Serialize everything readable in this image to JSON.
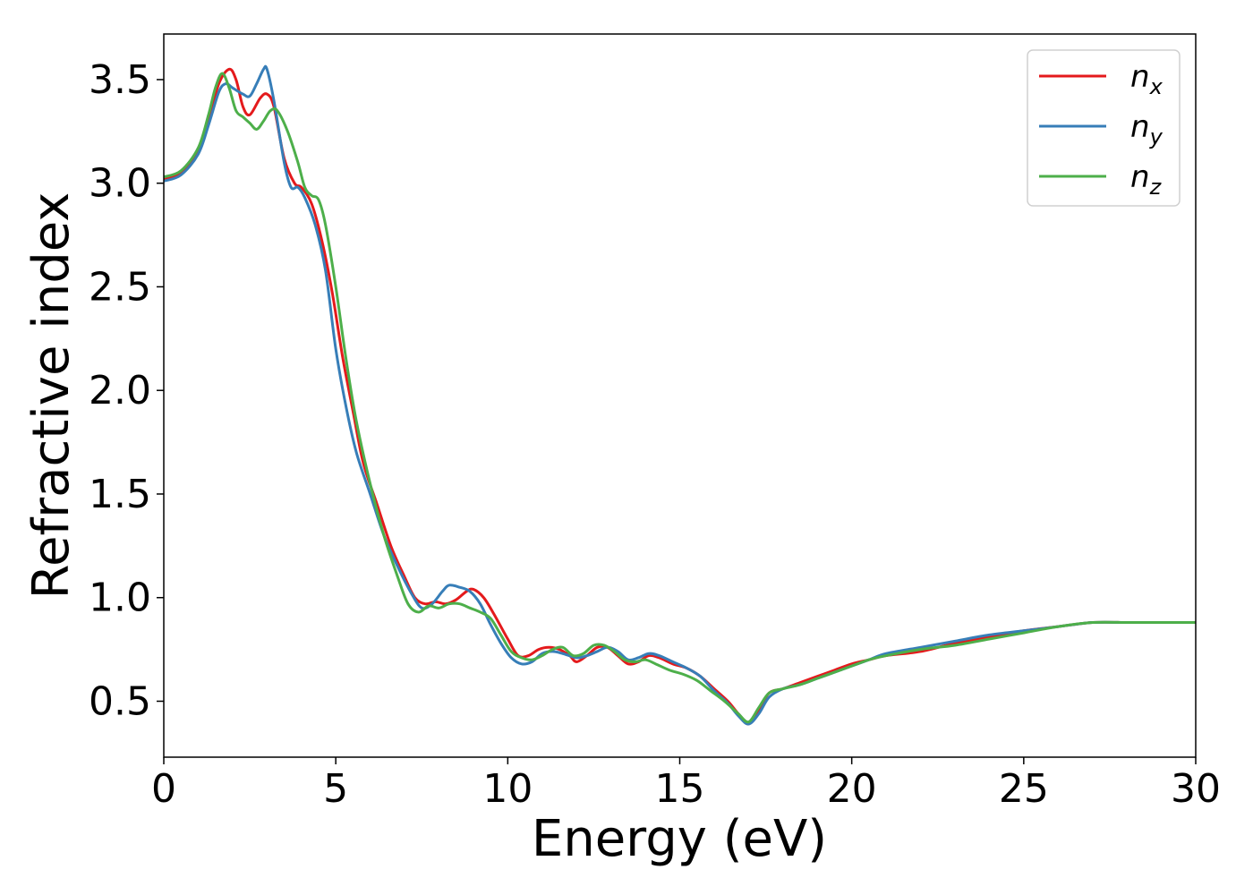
{
  "chart_data": {
    "type": "line",
    "xlabel": "Energy (eV)",
    "ylabel": "Refractive index",
    "xlim": [
      0,
      30
    ],
    "ylim": [
      0.23,
      3.72
    ],
    "xticks": [
      0,
      5,
      10,
      15,
      20,
      25,
      30
    ],
    "yticks": [
      0.5,
      1.0,
      1.5,
      2.0,
      2.5,
      3.0,
      3.5
    ],
    "grid": false,
    "legend_position": "top-right",
    "series": [
      {
        "name": "n",
        "subscript": "x",
        "color": "#e41a1c",
        "x": [
          0,
          0.5,
          1.0,
          1.3,
          1.6,
          1.9,
          2.1,
          2.3,
          2.5,
          2.8,
          3.0,
          3.2,
          3.5,
          3.8,
          4.0,
          4.3,
          4.6,
          4.9,
          5.2,
          5.5,
          5.8,
          6.2,
          6.6,
          7.0,
          7.3,
          7.6,
          7.9,
          8.2,
          8.5,
          8.8,
          9.0,
          9.3,
          9.6,
          10.0,
          10.3,
          10.6,
          10.9,
          11.2,
          11.5,
          11.8,
          12.0,
          12.3,
          12.6,
          12.9,
          13.2,
          13.5,
          13.8,
          14.1,
          14.4,
          14.8,
          15.2,
          15.6,
          16.0,
          16.4,
          16.7,
          17.0,
          17.3,
          17.6,
          18.0,
          18.5,
          19.0,
          19.5,
          20.0,
          20.5,
          21.0,
          22.0,
          23.0,
          24.0,
          25.0,
          26.0,
          27.0,
          28.0,
          28.5,
          29.0,
          30.0
        ],
        "y": [
          3.02,
          3.05,
          3.15,
          3.3,
          3.48,
          3.55,
          3.5,
          3.37,
          3.33,
          3.41,
          3.43,
          3.37,
          3.12,
          3.0,
          2.98,
          2.9,
          2.72,
          2.47,
          2.16,
          1.9,
          1.65,
          1.45,
          1.25,
          1.1,
          1.0,
          0.97,
          0.98,
          0.97,
          0.99,
          1.03,
          1.04,
          1.0,
          0.92,
          0.8,
          0.72,
          0.72,
          0.75,
          0.76,
          0.75,
          0.72,
          0.69,
          0.72,
          0.76,
          0.76,
          0.72,
          0.68,
          0.69,
          0.72,
          0.71,
          0.68,
          0.66,
          0.62,
          0.56,
          0.5,
          0.44,
          0.39,
          0.46,
          0.54,
          0.56,
          0.59,
          0.62,
          0.65,
          0.68,
          0.7,
          0.72,
          0.74,
          0.78,
          0.81,
          0.84,
          0.86,
          0.88,
          0.88,
          0.88,
          0.88,
          0.88
        ]
      },
      {
        "name": "n",
        "subscript": "y",
        "color": "#377eb8",
        "x": [
          0,
          0.5,
          1.0,
          1.3,
          1.6,
          1.8,
          2.0,
          2.3,
          2.5,
          2.7,
          2.9,
          3.0,
          3.2,
          3.5,
          3.7,
          3.9,
          4.1,
          4.4,
          4.7,
          5.0,
          5.3,
          5.6,
          6.0,
          6.4,
          6.8,
          7.2,
          7.5,
          7.8,
          8.1,
          8.3,
          8.6,
          8.9,
          9.2,
          9.5,
          9.8,
          10.1,
          10.4,
          10.7,
          11.0,
          11.3,
          11.6,
          12.0,
          12.3,
          12.6,
          12.9,
          13.2,
          13.5,
          13.8,
          14.1,
          14.4,
          14.8,
          15.2,
          15.6,
          16.0,
          16.4,
          16.7,
          17.0,
          17.3,
          17.6,
          18.0,
          18.5,
          19.0,
          19.5,
          20.0,
          20.5,
          21.0,
          22.0,
          23.0,
          24.0,
          25.0,
          26.0,
          27.0,
          28.0,
          28.5,
          29.0,
          30.0
        ],
        "y": [
          3.01,
          3.04,
          3.14,
          3.28,
          3.44,
          3.48,
          3.46,
          3.43,
          3.42,
          3.48,
          3.55,
          3.55,
          3.4,
          3.1,
          2.98,
          2.98,
          2.93,
          2.8,
          2.58,
          2.2,
          1.92,
          1.7,
          1.5,
          1.3,
          1.15,
          1.02,
          0.95,
          0.97,
          1.03,
          1.06,
          1.05,
          1.03,
          0.97,
          0.87,
          0.78,
          0.71,
          0.68,
          0.69,
          0.73,
          0.74,
          0.73,
          0.71,
          0.72,
          0.74,
          0.76,
          0.74,
          0.7,
          0.71,
          0.73,
          0.72,
          0.69,
          0.66,
          0.62,
          0.55,
          0.49,
          0.43,
          0.39,
          0.44,
          0.52,
          0.56,
          0.58,
          0.61,
          0.64,
          0.67,
          0.7,
          0.73,
          0.76,
          0.79,
          0.82,
          0.84,
          0.86,
          0.88,
          0.88,
          0.88,
          0.88,
          0.88
        ]
      },
      {
        "name": "n",
        "subscript": "z",
        "color": "#4daf4a",
        "x": [
          0,
          0.5,
          1.0,
          1.3,
          1.5,
          1.7,
          1.9,
          2.1,
          2.3,
          2.5,
          2.7,
          2.9,
          3.1,
          3.3,
          3.6,
          3.9,
          4.1,
          4.3,
          4.5,
          4.7,
          5.0,
          5.3,
          5.6,
          6.0,
          6.4,
          6.8,
          7.1,
          7.4,
          7.7,
          8.0,
          8.3,
          8.6,
          8.9,
          9.2,
          9.5,
          9.8,
          10.1,
          10.4,
          10.7,
          11.0,
          11.3,
          11.6,
          11.9,
          12.2,
          12.5,
          12.8,
          13.1,
          13.4,
          13.7,
          14.0,
          14.3,
          14.7,
          15.1,
          15.5,
          15.9,
          16.3,
          16.7,
          17.0,
          17.3,
          17.6,
          18.0,
          18.5,
          19.0,
          19.5,
          20.0,
          20.5,
          21.0,
          22.0,
          23.0,
          24.0,
          25.0,
          26.0,
          27.0,
          28.0,
          28.5,
          29.0,
          30.0
        ],
        "y": [
          3.03,
          3.06,
          3.17,
          3.33,
          3.46,
          3.53,
          3.46,
          3.35,
          3.32,
          3.29,
          3.26,
          3.3,
          3.35,
          3.35,
          3.25,
          3.1,
          2.98,
          2.94,
          2.92,
          2.8,
          2.5,
          2.15,
          1.85,
          1.55,
          1.3,
          1.1,
          0.97,
          0.93,
          0.96,
          0.95,
          0.97,
          0.97,
          0.95,
          0.93,
          0.9,
          0.82,
          0.74,
          0.71,
          0.7,
          0.72,
          0.75,
          0.76,
          0.72,
          0.73,
          0.77,
          0.77,
          0.74,
          0.7,
          0.69,
          0.7,
          0.68,
          0.65,
          0.63,
          0.6,
          0.55,
          0.5,
          0.44,
          0.4,
          0.47,
          0.54,
          0.56,
          0.58,
          0.61,
          0.64,
          0.67,
          0.7,
          0.72,
          0.75,
          0.77,
          0.8,
          0.83,
          0.86,
          0.88,
          0.88,
          0.88,
          0.88,
          0.88
        ]
      }
    ]
  }
}
